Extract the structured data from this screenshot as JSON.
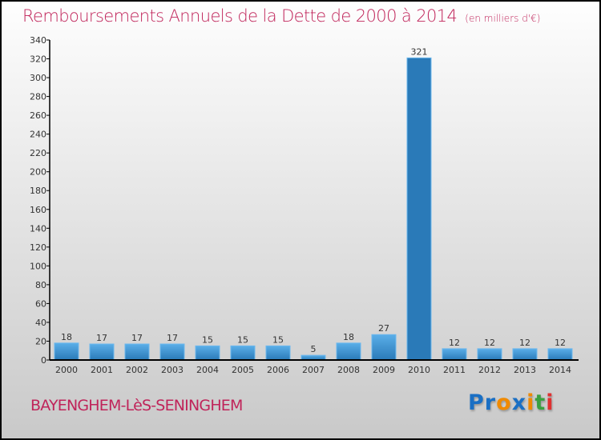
{
  "chart_data": {
    "type": "bar",
    "title": "Remboursements Annuels de la Dette de 2000 à 2014",
    "unit": "(en milliers d'€)",
    "categories": [
      "2000",
      "2001",
      "2002",
      "2003",
      "2004",
      "2005",
      "2006",
      "2007",
      "2008",
      "2009",
      "2010",
      "2011",
      "2012",
      "2013",
      "2014"
    ],
    "values": [
      18,
      17,
      17,
      17,
      15,
      15,
      15,
      5,
      18,
      27,
      321,
      12,
      12,
      12,
      12
    ],
    "ylim": [
      0,
      340
    ],
    "yticks": [
      0,
      20,
      40,
      60,
      80,
      100,
      120,
      140,
      160,
      180,
      200,
      220,
      240,
      260,
      280,
      300,
      320,
      340
    ],
    "highlight_index": 10,
    "colors": {
      "bar": "#4a9fe0",
      "highlight": "#2a7ab8",
      "title": "#c0245a"
    }
  },
  "commune": "BAYENGHEM-LèS-SENINGHEM",
  "logo": {
    "letters": [
      "P",
      "r",
      "o",
      "x",
      "i",
      "t",
      "i"
    ],
    "colors": [
      "#1a6fc4",
      "#1a6fc4",
      "#f08a00",
      "#1a6fc4",
      "#f08a00",
      "#3aa040",
      "#e03030"
    ]
  }
}
